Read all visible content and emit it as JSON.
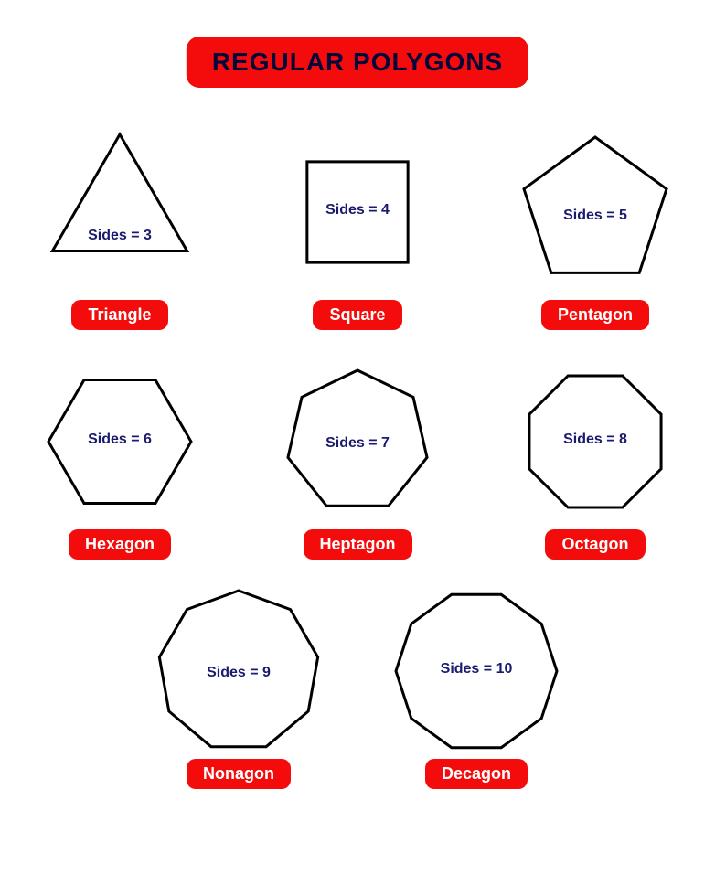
{
  "title": "REGULAR POLYGONS",
  "colors": {
    "accent": "#f40b0b",
    "title_text": "#06063a",
    "sides_text": "#1a1a6e",
    "stroke": "#000000",
    "background": "#ffffff",
    "name_text": "#ffffff"
  },
  "stroke_width": 3,
  "label_fontsize": 16,
  "title_fontsize": 28,
  "name_fontsize": 18,
  "layout": {
    "rows": [
      [
        0,
        1,
        2
      ],
      [
        3,
        4,
        5
      ],
      [
        6,
        7
      ]
    ]
  },
  "polygons": [
    {
      "name": "Triangle",
      "sides": 3,
      "sides_label": "Sides = 3",
      "radius": 85,
      "rotation": -90,
      "label_dy": 28
    },
    {
      "name": "Square",
      "sides": 4,
      "sides_label": "Sides = 4",
      "radius": 78,
      "rotation": 45,
      "label_dy": 0
    },
    {
      "name": "Pentagon",
      "sides": 5,
      "sides_label": "Sides = 5",
      "radius": 82,
      "rotation": -90,
      "label_dy": 6
    },
    {
      "name": "Hexagon",
      "sides": 6,
      "sides_label": "Sides = 6",
      "radius": 78,
      "rotation": 0,
      "label_dy": 0
    },
    {
      "name": "Heptagon",
      "sides": 7,
      "sides_label": "Sides = 7",
      "radius": 78,
      "rotation": -90,
      "label_dy": 4
    },
    {
      "name": "Octagon",
      "sides": 8,
      "sides_label": "Sides = 8",
      "radius": 78,
      "rotation": 22.5,
      "label_dy": 0
    },
    {
      "name": "Nonagon",
      "sides": 9,
      "sides_label": "Sides = 9",
      "radius": 88,
      "rotation": -90,
      "label_dy": 4
    },
    {
      "name": "Decagon",
      "sides": 10,
      "sides_label": "Sides = 10",
      "radius": 88,
      "rotation": 0,
      "label_dy": 0
    }
  ]
}
